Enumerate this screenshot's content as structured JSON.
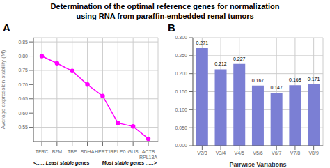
{
  "chart_data": [
    {
      "type": "line",
      "title": "Determination of the optimal reference genes for normalization",
      "subtitle": "using RNA from paraffin-embedded renal tumors",
      "categories": [
        "TFRC",
        "B2M",
        "TBP",
        "SDHA",
        "HPRT1",
        "RPLP0",
        "GUS",
        "ACTB\nRPL13A"
      ],
      "values": [
        0.8,
        0.775,
        0.748,
        0.7,
        0.66,
        0.565,
        0.553,
        0.51
      ],
      "ylabel": "Average expression stability (M)",
      "annotations": [
        "A",
        "<::::: Least stable genes",
        "Most stable genes :::::>"
      ],
      "ylim": [
        0.5,
        0.865
      ],
      "yticks": [
        0.55,
        {
          "value": 0.6,
          "label": "0.60"
        },
        0.65,
        {
          "value": 0.7,
          "label": "0.70"
        },
        0.75,
        {
          "value": 0.8,
          "label": "0.80"
        },
        0.85
      ],
      "color": "#FF00FF",
      "marker": "circle",
      "grid": true
    },
    {
      "type": "bar",
      "categories": [
        "V2/3",
        "V3/4",
        "V4/5",
        "V5/6",
        "V6/7",
        "V7/8",
        "V8/9"
      ],
      "values": [
        0.271,
        0.212,
        0.227,
        0.167,
        0.147,
        0.168,
        0.171
      ],
      "color": "#7B7FD4",
      "xlabel": "Pairwise Variations",
      "annotations": [
        "B"
      ],
      "ylim": [
        0.0,
        0.3
      ],
      "yticks": [
        {
          "value": 0,
          "label": "0.000"
        },
        {
          "value": 0.05,
          "label": "0.050"
        },
        {
          "value": 0.1,
          "label": "0.100"
        },
        {
          "value": 0.15,
          "label": "0.150"
        },
        {
          "value": 0.2,
          "label": "0.200"
        },
        {
          "value": 0.25,
          "label": "0.250"
        },
        {
          "value": 0.3,
          "label": "0.300"
        }
      ],
      "grid": true,
      "data_labels": true
    }
  ]
}
